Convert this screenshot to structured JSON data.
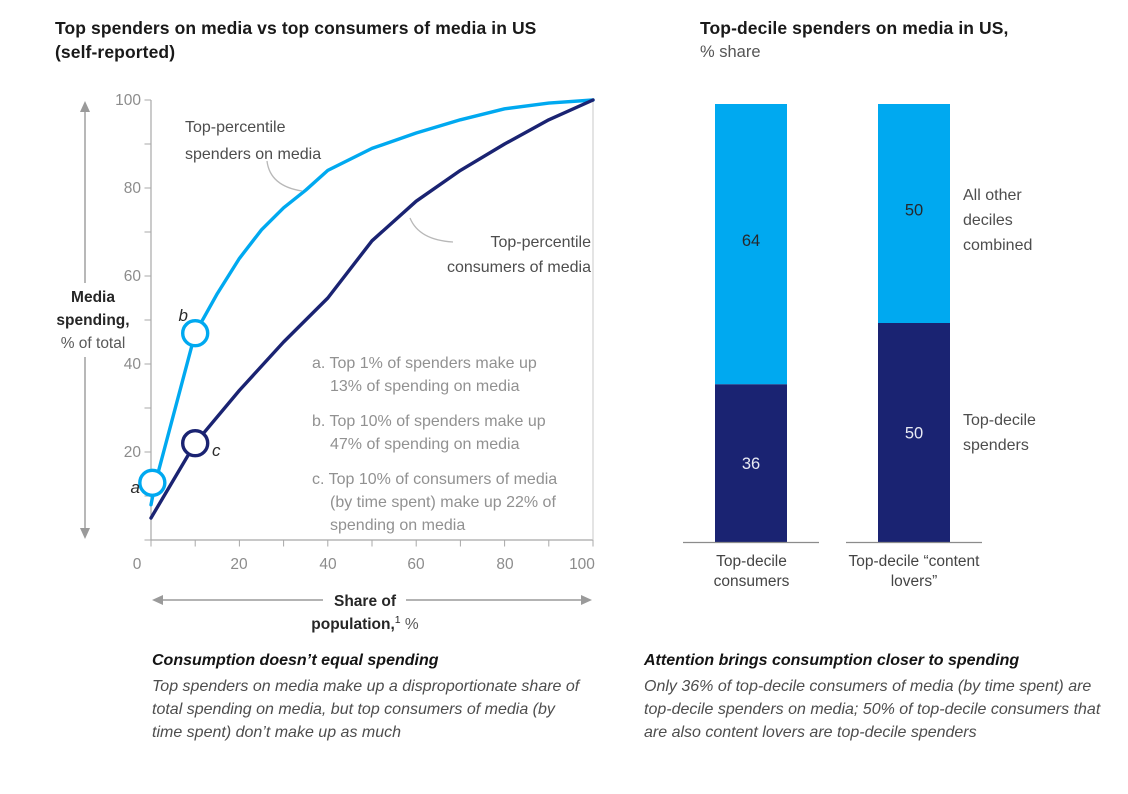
{
  "colors": {
    "cyan": "#00a9f0",
    "navy": "#1a2372",
    "axis_gray": "#a8a8a8",
    "plot_border_gray": "#c9c9c9",
    "tick_label_gray": "#8c8c8c",
    "note_gray": "#919191",
    "curve_label_gray": "#4d4d4d",
    "value_on_cyan": "#26282c",
    "value_on_navy": "#e9ebf4"
  },
  "left_chart": {
    "title_line1": "Top spenders on media vs top consumers of media in US",
    "title_line2": "(self-reported)",
    "y_ticks": [
      "100",
      "80",
      "60",
      "40",
      "20"
    ],
    "x_ticks": [
      "0",
      "20",
      "40",
      "60",
      "80",
      "100"
    ],
    "y_axis": {
      "bold1": "Media",
      "bold2": "spending,",
      "regular": "% of total"
    },
    "x_axis": {
      "bold1": "Share of",
      "bold2": "population,",
      "sup": "1",
      "unit": " %"
    },
    "spenders_label": {
      "line1": "Top-percentile",
      "line2": "spenders on media"
    },
    "consumers_label": {
      "line1": "Top-percentile",
      "line2": "consumers of media"
    },
    "markers": {
      "a": "a",
      "b": "b",
      "c": "c"
    },
    "notes": {
      "a1": "a. Top 1% of spenders make up",
      "a2": "13% of spending on media",
      "b1": "b. Top 10% of spenders make up",
      "b2": "47% of spending on media",
      "c1": "c. Top 10% of consumers of media",
      "c2": "(by time spent) make up 22% of",
      "c3": "spending on media"
    },
    "caption": {
      "title": "Consumption doesn’t equal spending",
      "body": "Top spenders on media make up a disproportionate share of total spending on media, but top consumers of media (by time spent) don’t make up as much"
    }
  },
  "right_chart": {
    "title_line1": "Top-decile spenders on media in US,",
    "title_line2": "% share",
    "legend_other": "All other deciles combined",
    "legend_spenders": "Top-decile spenders",
    "bar_labels": [
      "Top-decile consumers",
      "Top-decile “content lovers”"
    ],
    "caption": {
      "title": "Attention brings consumption closer to spending",
      "body": "Only 36% of top-decile consumers of media (by time spent) are top-decile spenders on media; 50% of top-decile consumers that are also content lovers are top-decile spenders"
    }
  },
  "chart_data": [
    {
      "type": "line",
      "title": "Top spenders on media vs top consumers of media in US (self-reported)",
      "xlabel": "Share of population, %",
      "ylabel": "Media spending, % of total",
      "xlim": [
        0,
        100
      ],
      "ylim": [
        0,
        100
      ],
      "grid": false,
      "series": [
        {
          "name": "Top-percentile spenders on media",
          "color_key": "cyan",
          "points": [
            [
              0,
              8
            ],
            [
              1,
              13
            ],
            [
              10,
              47
            ],
            [
              15,
              56
            ],
            [
              20,
              64
            ],
            [
              25,
              70.5
            ],
            [
              30,
              75.5
            ],
            [
              35,
              79.5
            ],
            [
              40,
              84
            ],
            [
              50,
              89
            ],
            [
              60,
              92.5
            ],
            [
              70,
              95.5
            ],
            [
              80,
              98
            ],
            [
              90,
              99.3
            ],
            [
              100,
              100
            ]
          ]
        },
        {
          "name": "Top-percentile consumers of media",
          "color_key": "navy",
          "points": [
            [
              0,
              5
            ],
            [
              10,
              22
            ],
            [
              20,
              34
            ],
            [
              30,
              45
            ],
            [
              40,
              55
            ],
            [
              50,
              68
            ],
            [
              60,
              77
            ],
            [
              70,
              84
            ],
            [
              80,
              90
            ],
            [
              90,
              95.5
            ],
            [
              100,
              100
            ]
          ]
        }
      ],
      "markers": [
        {
          "label": "a",
          "x": 0.3,
          "y": 13,
          "series": 0,
          "meaning": "Top 1% of spenders make up 13% of spending on media"
        },
        {
          "label": "b",
          "x": 10,
          "y": 47,
          "series": 0,
          "meaning": "Top 10% of spenders make up 47% of spending on media"
        },
        {
          "label": "c",
          "x": 10,
          "y": 22,
          "series": 1,
          "meaning": "Top 10% of consumers of media (by time spent) make up 22% of spending on media"
        }
      ]
    },
    {
      "type": "bar",
      "stacked": true,
      "title": "Top-decile spenders on media in US, % share",
      "categories": [
        "Top-decile consumers",
        "Top-decile “content lovers”"
      ],
      "series": [
        {
          "name": "Top-decile spenders",
          "color_key": "navy",
          "values": [
            36,
            50
          ]
        },
        {
          "name": "All other deciles combined",
          "color_key": "cyan",
          "values": [
            64,
            50
          ]
        }
      ],
      "ylim": [
        0,
        100
      ],
      "legend_position": "right"
    }
  ]
}
